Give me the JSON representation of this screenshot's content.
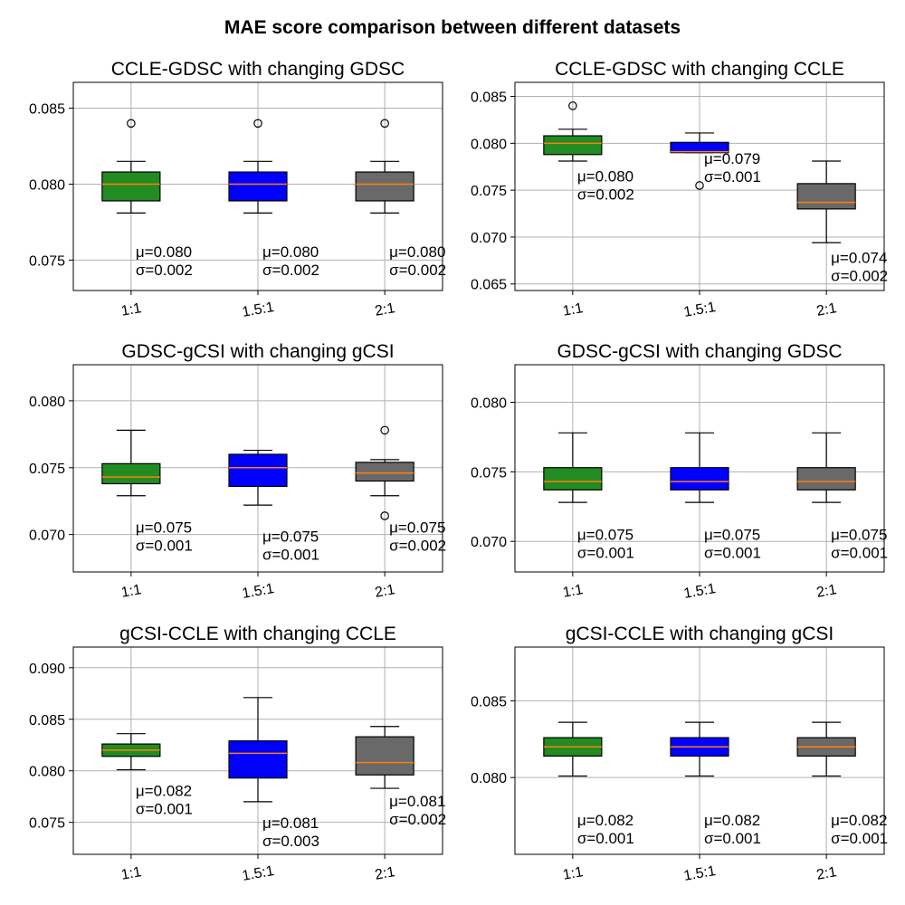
{
  "figure_title": "MAE score comparison between different datasets",
  "colors": {
    "box_fills": [
      "#228b22",
      "#0000ff",
      "#696969"
    ],
    "median": "#ff7f0e",
    "grid": "#b0b0b0",
    "edge": "#000000"
  },
  "chart_data": [
    {
      "type": "box",
      "title": "CCLE-GDSC with changing GDSC",
      "categories": [
        "1:1",
        "1.5:1",
        "2:1"
      ],
      "ylim": [
        0.073,
        0.0867
      ],
      "yticks": [
        0.075,
        0.08,
        0.085
      ],
      "ytick_labels": [
        "0.075",
        "0.080",
        "0.085"
      ],
      "grid": true,
      "boxes": [
        {
          "whisker_low": 0.0781,
          "q1": 0.0789,
          "median": 0.08,
          "q3": 0.0808,
          "whisker_high": 0.0815,
          "outliers": [
            0.084
          ],
          "mu_label": "μ=0.080",
          "sigma_label": "σ=0.002",
          "label_y": 0.074
        },
        {
          "whisker_low": 0.0781,
          "q1": 0.0789,
          "median": 0.08,
          "q3": 0.0808,
          "whisker_high": 0.0815,
          "outliers": [
            0.084
          ],
          "mu_label": "μ=0.080",
          "sigma_label": "σ=0.002",
          "label_y": 0.074
        },
        {
          "whisker_low": 0.0781,
          "q1": 0.0789,
          "median": 0.08,
          "q3": 0.0808,
          "whisker_high": 0.0815,
          "outliers": [
            0.084
          ],
          "mu_label": "μ=0.080",
          "sigma_label": "σ=0.002",
          "label_y": 0.074
        }
      ]
    },
    {
      "type": "box",
      "title": "CCLE-GDSC with changing CCLE",
      "categories": [
        "1:1",
        "1.5:1",
        "2:1"
      ],
      "ylim": [
        0.0643,
        0.0865
      ],
      "yticks": [
        0.065,
        0.07,
        0.075,
        0.08,
        0.085
      ],
      "ytick_labels": [
        "0.065",
        "0.070",
        "0.075",
        "0.080",
        "0.085"
      ],
      "grid": true,
      "boxes": [
        {
          "whisker_low": 0.0781,
          "q1": 0.0788,
          "median": 0.08,
          "q3": 0.0808,
          "whisker_high": 0.0815,
          "outliers": [
            0.084
          ],
          "mu_label": "μ=0.080",
          "sigma_label": "σ=0.002",
          "label_y": 0.074
        },
        {
          "whisker_low": 0.079,
          "q1": 0.079,
          "median": 0.0791,
          "q3": 0.0801,
          "whisker_high": 0.0811,
          "outliers": [
            0.0755
          ],
          "mu_label": "μ=0.079",
          "sigma_label": "σ=0.001",
          "label_y": 0.0759
        },
        {
          "whisker_low": 0.0694,
          "q1": 0.073,
          "median": 0.0737,
          "q3": 0.0757,
          "whisker_high": 0.0781,
          "outliers": [],
          "mu_label": "μ=0.074",
          "sigma_label": "σ=0.002",
          "label_y": 0.0653
        }
      ]
    },
    {
      "type": "box",
      "title": "GDSC-gCSI with changing gCSI",
      "categories": [
        "1:1",
        "1.5:1",
        "2:1"
      ],
      "ylim": [
        0.0672,
        0.0827
      ],
      "yticks": [
        0.07,
        0.075,
        0.08
      ],
      "ytick_labels": [
        "0.070",
        "0.075",
        "0.080"
      ],
      "grid": true,
      "boxes": [
        {
          "whisker_low": 0.0729,
          "q1": 0.0738,
          "median": 0.0743,
          "q3": 0.0753,
          "whisker_high": 0.0778,
          "outliers": [],
          "mu_label": "μ=0.075",
          "sigma_label": "σ=0.001",
          "label_y": 0.0688
        },
        {
          "whisker_low": 0.0722,
          "q1": 0.0736,
          "median": 0.075,
          "q3": 0.076,
          "whisker_high": 0.0763,
          "outliers": [],
          "mu_label": "μ=0.075",
          "sigma_label": "σ=0.001",
          "label_y": 0.0681
        },
        {
          "whisker_low": 0.0729,
          "q1": 0.074,
          "median": 0.0746,
          "q3": 0.0754,
          "whisker_high": 0.0756,
          "outliers": [
            0.0778,
            0.0714
          ],
          "mu_label": "μ=0.075",
          "sigma_label": "σ=0.002",
          "label_y": 0.0688
        }
      ]
    },
    {
      "type": "box",
      "title": "GDSC-gCSI with changing GDSC",
      "categories": [
        "1:1",
        "1.5:1",
        "2:1"
      ],
      "ylim": [
        0.0678,
        0.0827
      ],
      "yticks": [
        0.07,
        0.075,
        0.08
      ],
      "ytick_labels": [
        "0.070",
        "0.075",
        "0.080"
      ],
      "grid": true,
      "boxes": [
        {
          "whisker_low": 0.0728,
          "q1": 0.0737,
          "median": 0.0743,
          "q3": 0.0753,
          "whisker_high": 0.0778,
          "outliers": [],
          "mu_label": "μ=0.075",
          "sigma_label": "σ=0.001",
          "label_y": 0.0688
        },
        {
          "whisker_low": 0.0728,
          "q1": 0.0737,
          "median": 0.0743,
          "q3": 0.0753,
          "whisker_high": 0.0778,
          "outliers": [],
          "mu_label": "μ=0.075",
          "sigma_label": "σ=0.001",
          "label_y": 0.0688
        },
        {
          "whisker_low": 0.0728,
          "q1": 0.0737,
          "median": 0.0743,
          "q3": 0.0753,
          "whisker_high": 0.0778,
          "outliers": [],
          "mu_label": "μ=0.075",
          "sigma_label": "σ=0.001",
          "label_y": 0.0688
        }
      ]
    },
    {
      "type": "box",
      "title": "gCSI-CCLE with changing CCLE",
      "categories": [
        "1:1",
        "1.5:1",
        "2:1"
      ],
      "ylim": [
        0.0719,
        0.092
      ],
      "yticks": [
        0.075,
        0.08,
        0.085,
        0.09
      ],
      "ytick_labels": [
        "0.075",
        "0.080",
        "0.085",
        "0.090"
      ],
      "grid": true,
      "boxes": [
        {
          "whisker_low": 0.0801,
          "q1": 0.0814,
          "median": 0.082,
          "q3": 0.0826,
          "whisker_high": 0.0836,
          "outliers": [],
          "mu_label": "μ=0.082",
          "sigma_label": "σ=0.001",
          "label_y": 0.0758
        },
        {
          "whisker_low": 0.077,
          "q1": 0.0793,
          "median": 0.0817,
          "q3": 0.0829,
          "whisker_high": 0.0871,
          "outliers": [],
          "mu_label": "μ=0.081",
          "sigma_label": "σ=0.003",
          "label_y": 0.0727
        },
        {
          "whisker_low": 0.0783,
          "q1": 0.0796,
          "median": 0.0808,
          "q3": 0.0833,
          "whisker_high": 0.0843,
          "outliers": [],
          "mu_label": "μ=0.081",
          "sigma_label": "σ=0.002",
          "label_y": 0.0748
        }
      ]
    },
    {
      "type": "box",
      "title": "gCSI-CCLE with changing gCSI",
      "categories": [
        "1:1",
        "1.5:1",
        "2:1"
      ],
      "ylim": [
        0.075,
        0.0885
      ],
      "yticks": [
        0.08,
        0.085
      ],
      "ytick_labels": [
        "0.080",
        "0.085"
      ],
      "grid": true,
      "boxes": [
        {
          "whisker_low": 0.0801,
          "q1": 0.0814,
          "median": 0.082,
          "q3": 0.0826,
          "whisker_high": 0.0836,
          "outliers": [],
          "mu_label": "μ=0.082",
          "sigma_label": "σ=0.001",
          "label_y": 0.0757
        },
        {
          "whisker_low": 0.0801,
          "q1": 0.0814,
          "median": 0.082,
          "q3": 0.0826,
          "whisker_high": 0.0836,
          "outliers": [],
          "mu_label": "μ=0.082",
          "sigma_label": "σ=0.001",
          "label_y": 0.0757
        },
        {
          "whisker_low": 0.0801,
          "q1": 0.0814,
          "median": 0.082,
          "q3": 0.0826,
          "whisker_high": 0.0836,
          "outliers": [],
          "mu_label": "μ=0.082",
          "sigma_label": "σ=0.001",
          "label_y": 0.0757
        }
      ]
    }
  ]
}
